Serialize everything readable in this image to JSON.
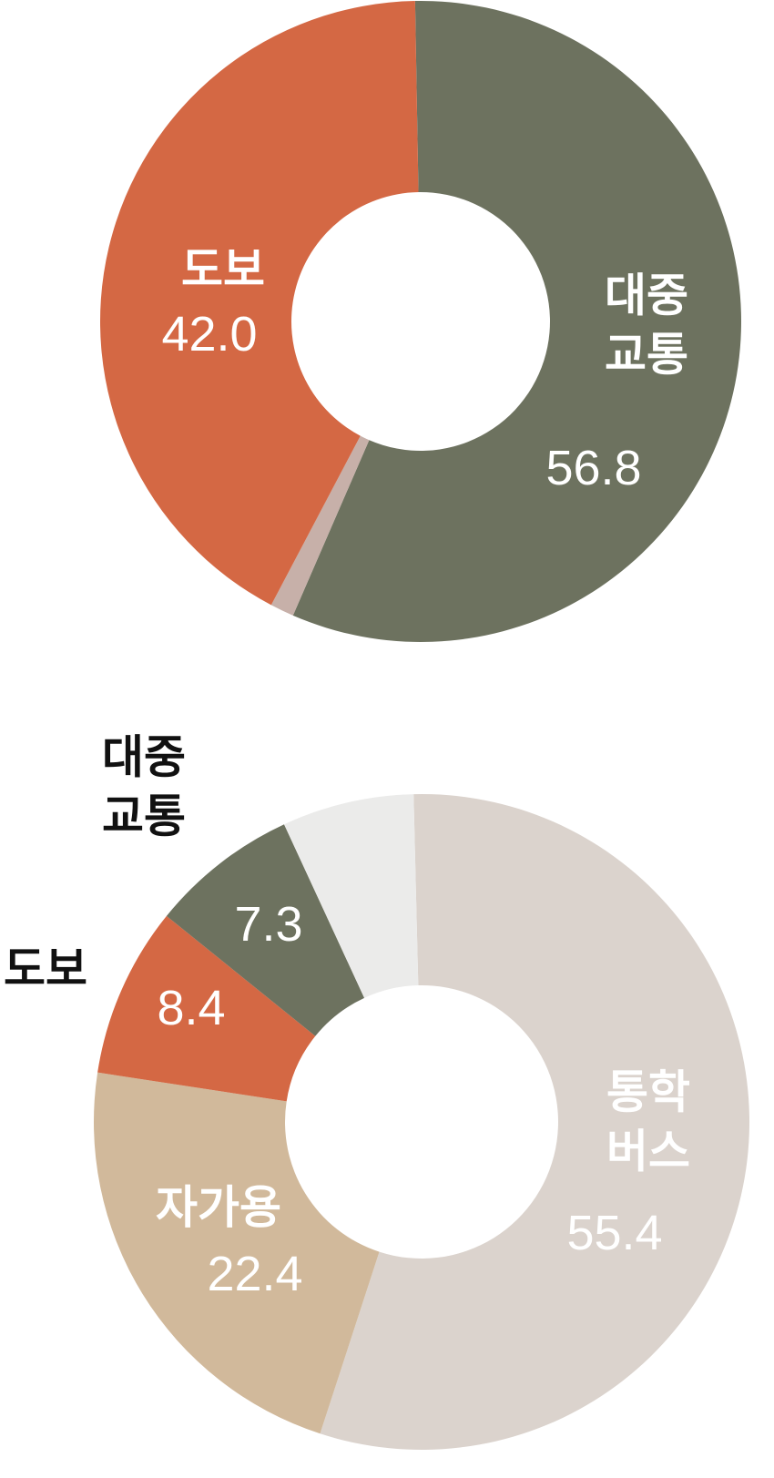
{
  "chart_data": [
    {
      "type": "pie",
      "variant": "donut",
      "slices": [
        {
          "key": "public",
          "label_lines": [
            "대중",
            "교통"
          ],
          "value": 56.8,
          "value_label": "56.8",
          "color": "#6d725f",
          "label_color": "#ffffff"
        },
        {
          "key": "other",
          "label_lines": [],
          "value": 1.2,
          "value_label": "",
          "color": "#c7b0a9",
          "label_color": "#ffffff"
        },
        {
          "key": "walk",
          "label_lines": [
            "도보"
          ],
          "value": 42.0,
          "value_label": "42.0",
          "color": "#d46844",
          "label_color": "#ffffff"
        }
      ]
    },
    {
      "type": "pie",
      "variant": "donut",
      "slices": [
        {
          "key": "shuttle",
          "label_lines": [
            "통학",
            "버스"
          ],
          "value": 55.4,
          "value_label": "55.4",
          "color": "#dbd3cd",
          "label_color": "#ffffff"
        },
        {
          "key": "car",
          "label_lines": [
            "자가용"
          ],
          "value": 22.4,
          "value_label": "22.4",
          "color": "#d1b99b",
          "label_color": "#ffffff"
        },
        {
          "key": "walk",
          "label_lines": [
            "도보"
          ],
          "value": 8.4,
          "value_label": "8.4",
          "color": "#d46844",
          "label_color": "#111111"
        },
        {
          "key": "public",
          "label_lines": [
            "대중",
            "교통"
          ],
          "value": 7.3,
          "value_label": "7.3",
          "color": "#6d725f",
          "label_color": "#111111"
        },
        {
          "key": "other",
          "label_lines": [],
          "value": 6.5,
          "value_label": "",
          "color": "#ebebea",
          "label_color": "#ffffff"
        }
      ]
    }
  ]
}
